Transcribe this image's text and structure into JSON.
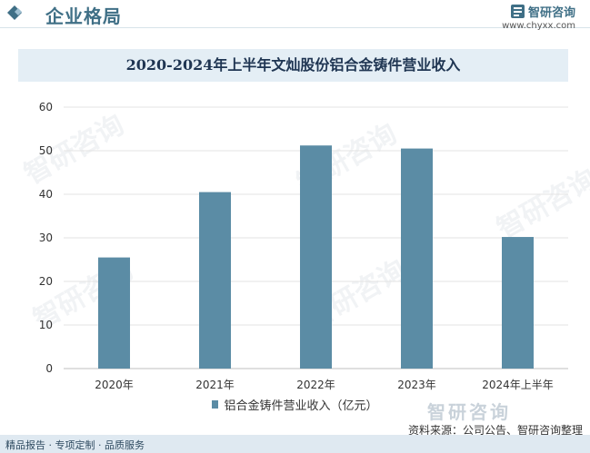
{
  "header": {
    "title": "企业格局",
    "brand_name": "智研咨询",
    "brand_url": "www.chyxx.com"
  },
  "footer": {
    "left_text": "精品报告 · 专项定制 · 品质服务",
    "source": "资料来源：公司公告、智研咨询整理",
    "brand_watermark": "智研咨询"
  },
  "watermark_text": "智研咨询",
  "colors": {
    "bar": "#5b8ca5",
    "title_band": "#e4eef5",
    "header_accent": "#3f6f86"
  },
  "chart_data": {
    "type": "bar",
    "title": "2020-2024年上半年文灿股份铝合金铸件营业收入",
    "categories": [
      "2020年",
      "2021年",
      "2022年",
      "2023年",
      "2024年上半年"
    ],
    "series": [
      {
        "name": "铝合金铸件营业收入（亿元）",
        "values": [
          25.5,
          40.5,
          51.2,
          50.5,
          30.2
        ]
      }
    ],
    "ylim": [
      0,
      60
    ],
    "yticks": [
      0,
      10,
      20,
      30,
      40,
      50,
      60
    ],
    "grid": true,
    "legend": "bottom"
  }
}
